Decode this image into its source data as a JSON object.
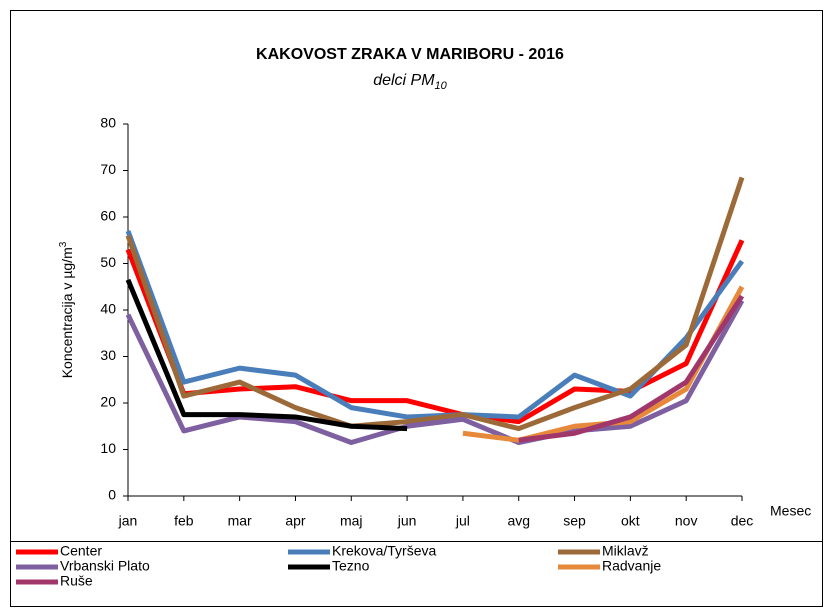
{
  "chart_data": {
    "type": "line",
    "title": "KAKOVOST ZRAKA V MARIBORU - 2016",
    "subtitle": "delci PM",
    "subtitle_subscript": "10",
    "ylabel": "Koncentracija v  µg/m",
    "ylabel_superscript": "3",
    "xlabel": "Mesec",
    "categories": [
      "jan",
      "feb",
      "mar",
      "apr",
      "maj",
      "jun",
      "jul",
      "avg",
      "sep",
      "okt",
      "nov",
      "dec"
    ],
    "ylim": [
      0,
      80
    ],
    "yticks": [
      0,
      10,
      20,
      30,
      40,
      50,
      60,
      70,
      80
    ],
    "grid": false,
    "legend": "bottom",
    "series": [
      {
        "name": "Center",
        "color": "#ff0000",
        "values": [
          53,
          22,
          23,
          23.5,
          20.5,
          20.5,
          17.5,
          16,
          23,
          22.5,
          28.5,
          55
        ]
      },
      {
        "name": "Krekova/Tyrševa",
        "color": "#4a7ebb",
        "values": [
          57,
          24.5,
          27.5,
          26,
          19,
          17,
          17.5,
          17,
          26,
          21.5,
          34,
          50.5
        ]
      },
      {
        "name": "Miklavž",
        "color": "#9c6a38",
        "values": [
          56,
          21.5,
          24.5,
          19,
          15,
          16,
          17.5,
          14.5,
          19,
          23,
          32.5,
          68.5
        ]
      },
      {
        "name": "Vrbanski Plato",
        "color": "#7e5fa0",
        "values": [
          39,
          14,
          17,
          16,
          11.5,
          15,
          16.5,
          11.5,
          14,
          15,
          20.5,
          42
        ]
      },
      {
        "name": "Tezno",
        "color": "#000000",
        "values": [
          46.5,
          17.5,
          17.5,
          17,
          15,
          14.5,
          null,
          null,
          null,
          null,
          null,
          null
        ]
      },
      {
        "name": "Radvanje",
        "color": "#e6893b",
        "values": [
          null,
          null,
          null,
          null,
          null,
          null,
          13.5,
          12,
          15,
          16,
          23,
          45
        ]
      },
      {
        "name": "Ruše",
        "color": "#a0366a",
        "values": [
          null,
          null,
          null,
          null,
          null,
          null,
          null,
          12,
          13.5,
          17,
          24.5,
          43
        ]
      }
    ]
  }
}
